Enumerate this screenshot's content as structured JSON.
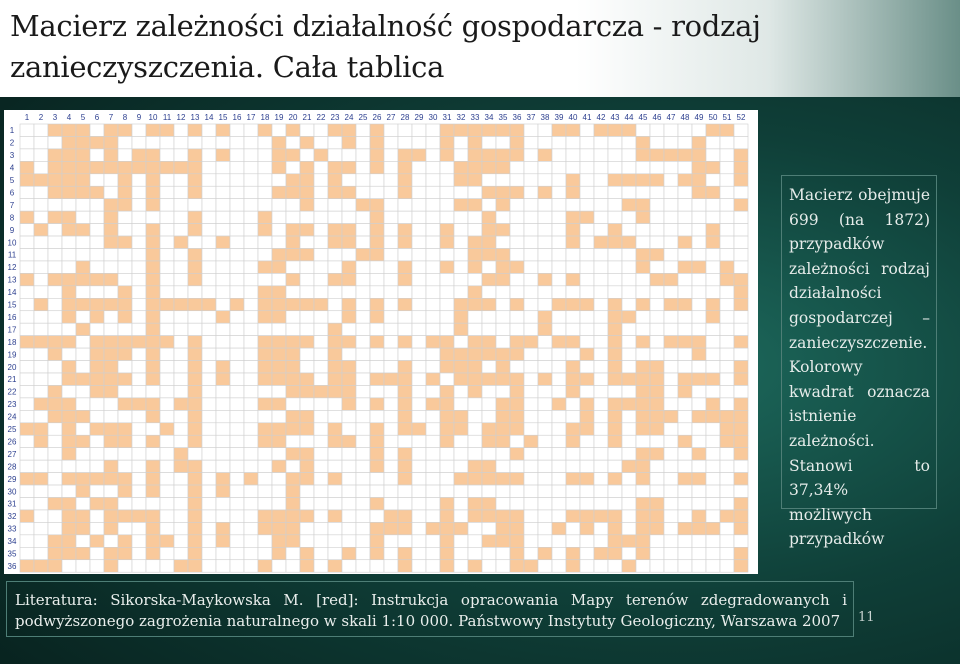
{
  "title": "Macierz zależności działalność gospodarcza - rodzaj zanieczyszczenia. Cała tablica",
  "matrix": {
    "columns": [
      "1",
      "2",
      "3",
      "4",
      "5",
      "6",
      "7",
      "8",
      "9",
      "10",
      "11",
      "12",
      "13",
      "14",
      "15",
      "16",
      "17",
      "18",
      "19",
      "20",
      "21",
      "22",
      "23",
      "24",
      "25",
      "26",
      "27",
      "28",
      "29",
      "30",
      "31",
      "32",
      "33",
      "34",
      "35",
      "36",
      "37",
      "38",
      "39",
      "40",
      "41",
      "42",
      "43",
      "44",
      "45",
      "46",
      "47",
      "48",
      "49",
      "50",
      "51",
      "52"
    ],
    "rows": [
      "1",
      "2",
      "3",
      "4",
      "5",
      "6",
      "7",
      "8",
      "9",
      "10",
      "11",
      "12",
      "13",
      "14",
      "15",
      "16",
      "17",
      "18",
      "19",
      "20",
      "21",
      "22",
      "23",
      "24",
      "25",
      "26",
      "27",
      "28",
      "29",
      "30",
      "31",
      "32",
      "33",
      "34",
      "35",
      "36"
    ],
    "filled_color": "#f9c99b",
    "empty_color": "#ffffff",
    "grid_color": "#cfcfcf",
    "label_color": "#2c3f8f",
    "filled_count": 699,
    "total_count": 1872
  },
  "info_text": "Macierz obejmuje 699 (na 1872) przypadków zależności rodzaj działalności gospodarczej – zanieczyszczenie. Kolorowy kwadrat oznacza istnienie zależności. Stanowi to 37,34% możliwych przypadków",
  "literature": "Literatura: Sikorska-Maykowska M. [red]: Instrukcja opracowania Mapy terenów zdegradowanych i podwyższonego zagrożenia naturalnego w skali 1:10 000. Państwowy Instytuty Geologiczny, Warszawa 2007",
  "page_number": "11"
}
